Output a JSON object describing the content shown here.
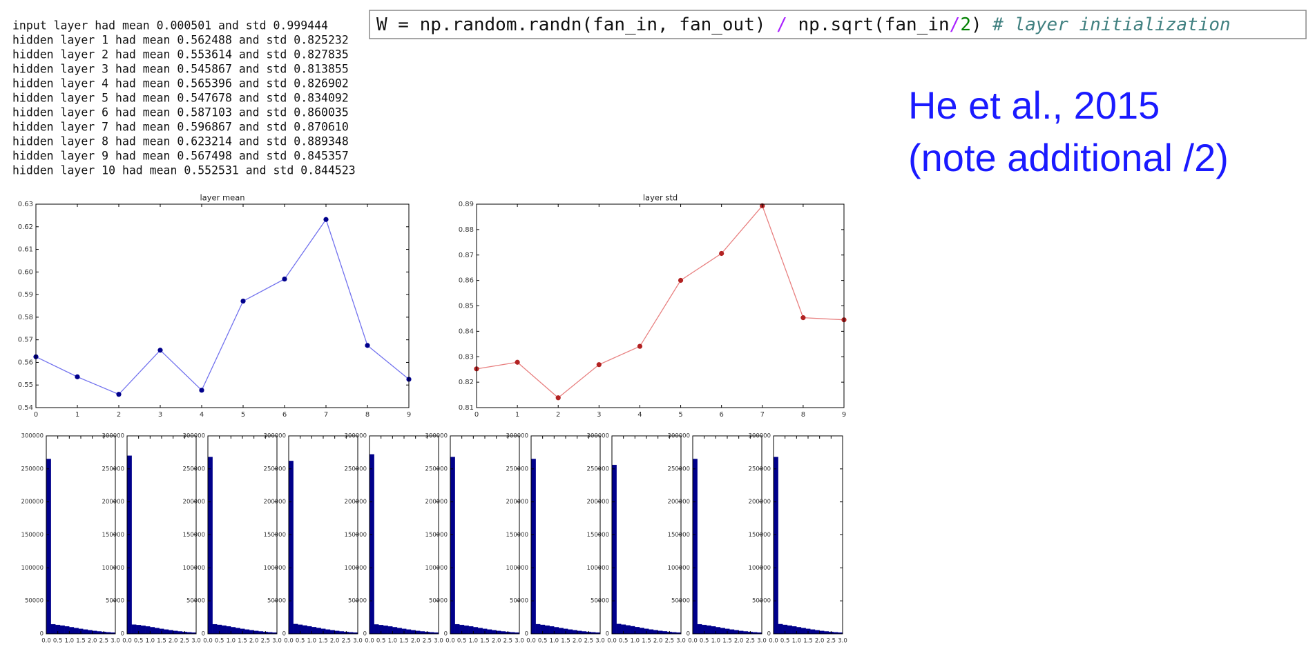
{
  "log_lines": [
    "input layer had mean 0.000501 and std 0.999444",
    "hidden layer 1 had mean 0.562488 and std 0.825232",
    "hidden layer 2 had mean 0.553614 and std 0.827835",
    "hidden layer 3 had mean 0.545867 and std 0.813855",
    "hidden layer 4 had mean 0.565396 and std 0.826902",
    "hidden layer 5 had mean 0.547678 and std 0.834092",
    "hidden layer 6 had mean 0.587103 and std 0.860035",
    "hidden layer 7 had mean 0.596867 and std 0.870610",
    "hidden layer 8 had mean 0.623214 and std 0.889348",
    "hidden layer 9 had mean 0.567498 and std 0.845357",
    "hidden layer 10 had mean 0.552531 and std 0.844523"
  ],
  "code": {
    "parts": [
      "W = np.random.randn(fan_in, fan_out) ",
      "/",
      " np.sqrt(fan_in",
      "/",
      "2",
      ") ",
      "# layer initialization"
    ]
  },
  "note": [
    "He et al., 2015",
    "(note additional /2)"
  ],
  "chart_data": [
    {
      "type": "line",
      "title": "layer mean",
      "x": [
        0,
        1,
        2,
        3,
        4,
        5,
        6,
        7,
        8,
        9
      ],
      "series": [
        {
          "color": "#7272ee",
          "marker_color": "#00008b",
          "values": [
            0.562488,
            0.553614,
            0.545867,
            0.565396,
            0.547678,
            0.587103,
            0.596867,
            0.623214,
            0.567498,
            0.552531
          ]
        }
      ],
      "xlim": [
        0,
        9
      ],
      "xticks": [
        0,
        1,
        2,
        3,
        4,
        5,
        6,
        7,
        8,
        9
      ],
      "ylim": [
        0.54,
        0.63
      ],
      "yticks": [
        0.54,
        0.55,
        0.56,
        0.57,
        0.58,
        0.59,
        {
          "value": 0.6,
          "label": "0.60"
        },
        0.61,
        0.62,
        0.63
      ]
    },
    {
      "type": "line",
      "title": "layer std",
      "x": [
        0,
        1,
        2,
        3,
        4,
        5,
        6,
        7,
        8,
        9
      ],
      "series": [
        {
          "color": "#e88080",
          "marker_color": "#b22222",
          "values": [
            0.825232,
            0.827835,
            0.813855,
            0.826902,
            0.834092,
            0.860035,
            0.87061,
            0.889348,
            0.845357,
            0.844523
          ]
        }
      ],
      "xlim": [
        0,
        9
      ],
      "xticks": [
        0,
        1,
        2,
        3,
        4,
        5,
        6,
        7,
        8,
        9
      ],
      "ylim": [
        0.81,
        0.89
      ],
      "yticks": [
        0.81,
        0.82,
        0.83,
        0.84,
        0.85,
        0.86,
        0.87,
        0.88,
        0.89
      ]
    },
    {
      "type": "histogram",
      "color": "#00008b",
      "bins": [
        0,
        0.2,
        0.4,
        0.6,
        0.8,
        1.0,
        1.2,
        1.4,
        1.6,
        1.8,
        2.0,
        2.2,
        2.4,
        2.6,
        2.8,
        3.0
      ],
      "values": [
        265000,
        14500,
        13500,
        12500,
        11300,
        10000,
        8800,
        7600,
        6500,
        5400,
        4500,
        3700,
        3000,
        2400,
        1900
      ],
      "xlim": [
        0,
        3
      ],
      "xticks": [
        {
          "value": 0,
          "label": "0.0"
        },
        0.5,
        {
          "value": 1,
          "label": "1.0"
        },
        1.5,
        {
          "value": 2,
          "label": "2.0"
        },
        2.5,
        {
          "value": 3,
          "label": "3.0"
        }
      ],
      "ylim": [
        0,
        300000
      ],
      "yticks": [
        0,
        50000,
        100000,
        150000,
        200000,
        250000,
        300000
      ]
    },
    {
      "type": "histogram",
      "color": "#00008b",
      "bins": [
        0,
        0.2,
        0.4,
        0.6,
        0.8,
        1.0,
        1.2,
        1.4,
        1.6,
        1.8,
        2.0,
        2.2,
        2.4,
        2.6,
        2.8,
        3.0
      ],
      "values": [
        270000,
        14000,
        13300,
        12300,
        11200,
        10000,
        8800,
        7600,
        6500,
        5400,
        4500,
        3700,
        3000,
        2400,
        1900
      ],
      "xlim": [
        0,
        3
      ],
      "xticks": [
        {
          "value": 0,
          "label": "0.0"
        },
        0.5,
        {
          "value": 1,
          "label": "1.0"
        },
        1.5,
        {
          "value": 2,
          "label": "2.0"
        },
        2.5,
        {
          "value": 3,
          "label": "3.0"
        }
      ],
      "ylim": [
        0,
        300000
      ],
      "yticks": [
        0,
        50000,
        100000,
        150000,
        200000,
        250000,
        300000
      ]
    },
    {
      "type": "histogram",
      "color": "#00008b",
      "bins": [
        0,
        0.2,
        0.4,
        0.6,
        0.8,
        1.0,
        1.2,
        1.4,
        1.6,
        1.8,
        2.0,
        2.2,
        2.4,
        2.6,
        2.8,
        3.0
      ],
      "values": [
        268000,
        14500,
        13600,
        12500,
        11300,
        10000,
        8800,
        7600,
        6500,
        5400,
        4500,
        3700,
        3000,
        2400,
        1900
      ],
      "xlim": [
        0,
        3
      ],
      "xticks": [
        {
          "value": 0,
          "label": "0.0"
        },
        0.5,
        {
          "value": 1,
          "label": "1.0"
        },
        1.5,
        {
          "value": 2,
          "label": "2.0"
        },
        2.5,
        {
          "value": 3,
          "label": "3.0"
        }
      ],
      "ylim": [
        0,
        300000
      ],
      "yticks": [
        0,
        50000,
        100000,
        150000,
        200000,
        250000,
        300000
      ]
    },
    {
      "type": "histogram",
      "color": "#00008b",
      "bins": [
        0,
        0.2,
        0.4,
        0.6,
        0.8,
        1.0,
        1.2,
        1.4,
        1.6,
        1.8,
        2.0,
        2.2,
        2.4,
        2.6,
        2.8,
        3.0
      ],
      "values": [
        262000,
        14800,
        13800,
        12600,
        11400,
        10100,
        8900,
        7700,
        6500,
        5400,
        4500,
        3700,
        3000,
        2400,
        1900
      ],
      "xlim": [
        0,
        3
      ],
      "xticks": [
        {
          "value": 0,
          "label": "0.0"
        },
        0.5,
        {
          "value": 1,
          "label": "1.0"
        },
        1.5,
        {
          "value": 2,
          "label": "2.0"
        },
        2.5,
        {
          "value": 3,
          "label": "3.0"
        }
      ],
      "ylim": [
        0,
        300000
      ],
      "yticks": [
        0,
        50000,
        100000,
        150000,
        200000,
        250000,
        300000
      ]
    },
    {
      "type": "histogram",
      "color": "#00008b",
      "bins": [
        0,
        0.2,
        0.4,
        0.6,
        0.8,
        1.0,
        1.2,
        1.4,
        1.6,
        1.8,
        2.0,
        2.2,
        2.4,
        2.6,
        2.8,
        3.0
      ],
      "values": [
        272000,
        14200,
        13300,
        12300,
        11200,
        10000,
        8800,
        7600,
        6500,
        5400,
        4500,
        3700,
        3000,
        2400,
        1900
      ],
      "xlim": [
        0,
        3
      ],
      "xticks": [
        {
          "value": 0,
          "label": "0.0"
        },
        0.5,
        {
          "value": 1,
          "label": "1.0"
        },
        1.5,
        {
          "value": 2,
          "label": "2.0"
        },
        2.5,
        {
          "value": 3,
          "label": "3.0"
        }
      ],
      "ylim": [
        0,
        300000
      ],
      "yticks": [
        0,
        50000,
        100000,
        150000,
        200000,
        250000,
        300000
      ]
    },
    {
      "type": "histogram",
      "color": "#00008b",
      "bins": [
        0,
        0.2,
        0.4,
        0.6,
        0.8,
        1.0,
        1.2,
        1.4,
        1.6,
        1.8,
        2.0,
        2.2,
        2.4,
        2.6,
        2.8,
        3.0
      ],
      "values": [
        268000,
        14500,
        13500,
        12400,
        11300,
        10000,
        8800,
        7600,
        6500,
        5400,
        4500,
        3700,
        3000,
        2400,
        1900
      ],
      "xlim": [
        0,
        3
      ],
      "xticks": [
        {
          "value": 0,
          "label": "0.0"
        },
        0.5,
        {
          "value": 1,
          "label": "1.0"
        },
        1.5,
        {
          "value": 2,
          "label": "2.0"
        },
        2.5,
        {
          "value": 3,
          "label": "3.0"
        }
      ],
      "ylim": [
        0,
        300000
      ],
      "yticks": [
        0,
        50000,
        100000,
        150000,
        200000,
        250000,
        300000
      ]
    },
    {
      "type": "histogram",
      "color": "#00008b",
      "bins": [
        0,
        0.2,
        0.4,
        0.6,
        0.8,
        1.0,
        1.2,
        1.4,
        1.6,
        1.8,
        2.0,
        2.2,
        2.4,
        2.6,
        2.8,
        3.0
      ],
      "values": [
        265000,
        14600,
        13600,
        12500,
        11300,
        10000,
        8800,
        7600,
        6500,
        5400,
        4500,
        3700,
        3000,
        2400,
        1900
      ],
      "xlim": [
        0,
        3
      ],
      "xticks": [
        {
          "value": 0,
          "label": "0.0"
        },
        0.5,
        {
          "value": 1,
          "label": "1.0"
        },
        1.5,
        {
          "value": 2,
          "label": "2.0"
        },
        2.5,
        {
          "value": 3,
          "label": "3.0"
        }
      ],
      "ylim": [
        0,
        300000
      ],
      "yticks": [
        0,
        50000,
        100000,
        150000,
        200000,
        250000,
        300000
      ]
    },
    {
      "type": "histogram",
      "color": "#00008b",
      "bins": [
        0,
        0.2,
        0.4,
        0.6,
        0.8,
        1.0,
        1.2,
        1.4,
        1.6,
        1.8,
        2.0,
        2.2,
        2.4,
        2.6,
        2.8,
        3.0
      ],
      "values": [
        256000,
        15000,
        14000,
        12800,
        11500,
        10200,
        8900,
        7700,
        6600,
        5500,
        4600,
        3800,
        3000,
        2400,
        1900
      ],
      "xlim": [
        0,
        3
      ],
      "xticks": [
        {
          "value": 0,
          "label": "0.0"
        },
        0.5,
        {
          "value": 1,
          "label": "1.0"
        },
        1.5,
        {
          "value": 2,
          "label": "2.0"
        },
        2.5,
        {
          "value": 3,
          "label": "3.0"
        }
      ],
      "ylim": [
        0,
        300000
      ],
      "yticks": [
        0,
        50000,
        100000,
        150000,
        200000,
        250000,
        300000
      ]
    },
    {
      "type": "histogram",
      "color": "#00008b",
      "bins": [
        0,
        0.2,
        0.4,
        0.6,
        0.8,
        1.0,
        1.2,
        1.4,
        1.6,
        1.8,
        2.0,
        2.2,
        2.4,
        2.6,
        2.8,
        3.0
      ],
      "values": [
        265000,
        14500,
        13500,
        12500,
        11300,
        10000,
        8800,
        7600,
        6500,
        5400,
        4500,
        3700,
        3000,
        2400,
        1900
      ],
      "xlim": [
        0,
        3
      ],
      "xticks": [
        {
          "value": 0,
          "label": "0.0"
        },
        0.5,
        {
          "value": 1,
          "label": "1.0"
        },
        1.5,
        {
          "value": 2,
          "label": "2.0"
        },
        2.5,
        {
          "value": 3,
          "label": "3.0"
        }
      ],
      "ylim": [
        0,
        300000
      ],
      "yticks": [
        0,
        50000,
        100000,
        150000,
        200000,
        250000,
        300000
      ]
    },
    {
      "type": "histogram",
      "color": "#00008b",
      "bins": [
        0,
        0.2,
        0.4,
        0.6,
        0.8,
        1.0,
        1.2,
        1.4,
        1.6,
        1.8,
        2.0,
        2.2,
        2.4,
        2.6,
        2.8,
        3.0
      ],
      "values": [
        268000,
        14700,
        13600,
        12500,
        11300,
        10000,
        8800,
        7600,
        6500,
        5400,
        4500,
        3700,
        3000,
        2400,
        1900
      ],
      "xlim": [
        0,
        3
      ],
      "xticks": [
        {
          "value": 0,
          "label": "0.0"
        },
        0.5,
        {
          "value": 1,
          "label": "1.0"
        },
        1.5,
        {
          "value": 2,
          "label": "2.0"
        },
        2.5,
        {
          "value": 3,
          "label": "3.0"
        }
      ],
      "ylim": [
        0,
        300000
      ],
      "yticks": [
        0,
        50000,
        100000,
        150000,
        200000,
        250000,
        300000
      ]
    }
  ]
}
